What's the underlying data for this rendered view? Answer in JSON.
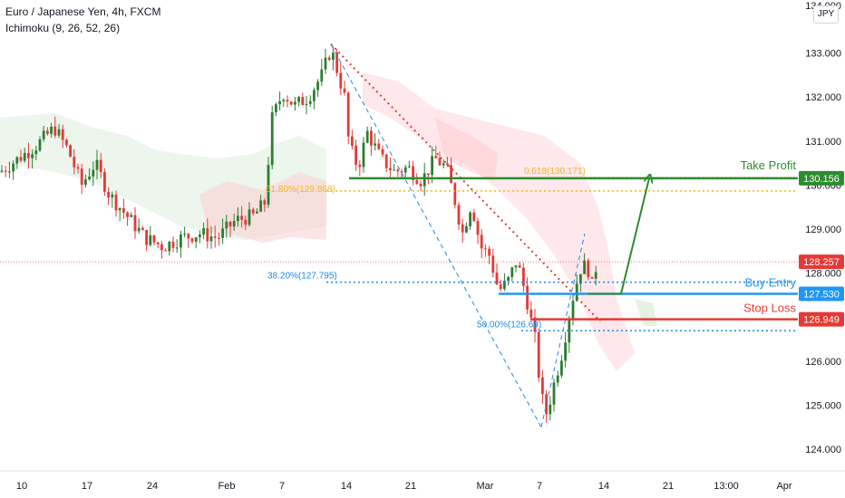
{
  "legend": {
    "symbol": "Euro / Japanese Yen, 4h, FXCM",
    "indicator": "Ichimoku (9, 26, 52, 26)"
  },
  "currency_badge": "JPY",
  "colors": {
    "up_candle": "#26a69a",
    "up_candle_chart": "#2e7d32",
    "down_candle": "#e53935",
    "take_profit": "#2e8b2e",
    "buy_entry": "#2196f3",
    "stop_loss": "#e53935",
    "fib_orange": "#f0b429",
    "fib_blue": "#1e88e5",
    "cloud_red": "#ffcdd2",
    "cloud_green": "#c8e6c9",
    "current_price": "#e53935"
  },
  "chart_data": {
    "type": "candlestick",
    "y_axis": {
      "range": [
        123.6,
        134.0
      ],
      "ticks": [
        "124.000",
        "125.000",
        "126.000",
        "127.000",
        "128.000",
        "129.000",
        "130.000",
        "131.000",
        "132.000",
        "133.000"
      ],
      "top_partial_label": "134.000"
    },
    "x_axis": {
      "ticks": [
        "10",
        "17",
        "24",
        "Feb",
        "7",
        "14",
        "21",
        "Mar",
        "7",
        "14",
        "21",
        "13:00",
        "Apr"
      ]
    },
    "price_tags": [
      {
        "name": "take-profit",
        "value": "130.156"
      },
      {
        "name": "current-price",
        "value": "128.257"
      },
      {
        "name": "buy-entry",
        "value": "127.530"
      },
      {
        "name": "stop-loss",
        "value": "126.949"
      }
    ],
    "levels": [
      {
        "name": "take-profit",
        "label": "Take Profit",
        "value": 130.156
      },
      {
        "name": "buy-entry",
        "label": "Buy Entry",
        "value": 127.53
      },
      {
        "name": "stop-loss",
        "label": "Stop Loss",
        "value": 126.949
      }
    ],
    "fib_annotations": [
      {
        "label": "0.618(130.171)",
        "value": 130.171
      },
      {
        "label": "61.80%(129.868)",
        "value": 129.868
      },
      {
        "label": "38.20%(127.795)",
        "value": 127.795
      },
      {
        "label": "50.00%(126.69)",
        "value": 126.69
      }
    ],
    "current_price": 128.257,
    "close_path": [
      [
        0,
        130.3
      ],
      [
        20,
        130.6
      ],
      [
        40,
        130.9
      ],
      [
        60,
        131.3
      ],
      [
        75,
        130.8
      ],
      [
        90,
        130.0
      ],
      [
        105,
        130.5
      ],
      [
        120,
        129.8
      ],
      [
        140,
        129.3
      ],
      [
        160,
        128.8
      ],
      [
        180,
        128.6
      ],
      [
        200,
        128.8
      ],
      [
        220,
        128.9
      ],
      [
        240,
        128.8
      ],
      [
        260,
        129.2
      ],
      [
        280,
        129.3
      ],
      [
        292,
        129.6
      ],
      [
        300,
        131.5
      ],
      [
        312,
        132.1
      ],
      [
        325,
        131.8
      ],
      [
        340,
        132.0
      ],
      [
        355,
        132.5
      ],
      [
        365,
        133.1
      ],
      [
        372,
        132.6
      ],
      [
        380,
        132.0
      ],
      [
        385,
        130.9
      ],
      [
        395,
        130.4
      ],
      [
        405,
        131.2
      ],
      [
        420,
        130.6
      ],
      [
        435,
        130.3
      ],
      [
        450,
        130.4
      ],
      [
        465,
        130.1
      ],
      [
        480,
        130.6
      ],
      [
        492,
        130.4
      ],
      [
        500,
        129.8
      ],
      [
        510,
        128.9
      ],
      [
        520,
        129.6
      ],
      [
        530,
        128.6
      ],
      [
        540,
        128.4
      ],
      [
        550,
        127.6
      ],
      [
        560,
        127.8
      ],
      [
        570,
        128.3
      ],
      [
        580,
        127.5
      ],
      [
        590,
        126.5
      ],
      [
        597,
        125.2
      ],
      [
        603,
        124.8
      ],
      [
        610,
        125.4
      ],
      [
        620,
        126.2
      ],
      [
        630,
        127.3
      ],
      [
        640,
        128.1
      ],
      [
        648,
        128.2
      ],
      [
        652,
        127.6
      ],
      [
        658,
        128.2
      ]
    ],
    "projection": {
      "from_value": 127.53,
      "to_value": 130.156
    }
  }
}
